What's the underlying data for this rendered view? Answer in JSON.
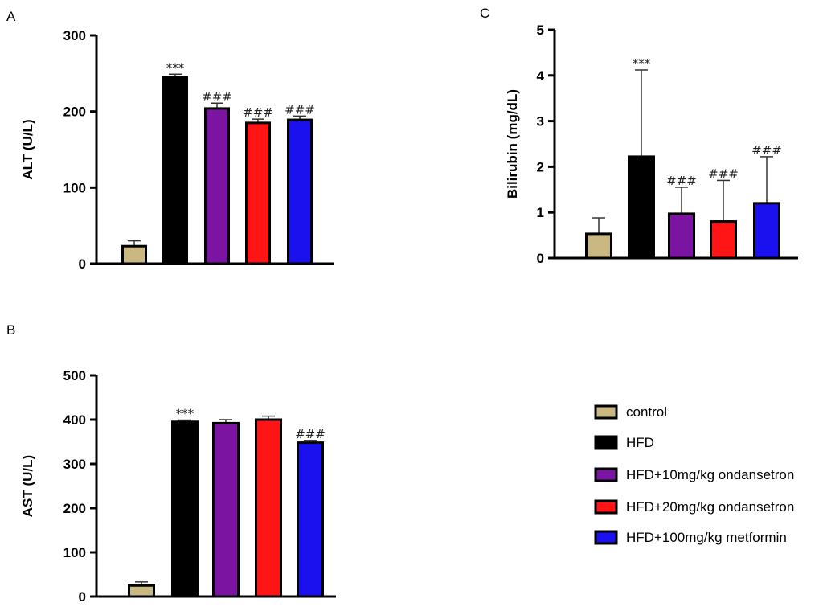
{
  "legend": [
    {
      "label": "control",
      "color": "#c9b882"
    },
    {
      "label": "HFD",
      "color": "#000000"
    },
    {
      "label": "HFD+10mg/kg ondansetron",
      "color": "#7b14a0"
    },
    {
      "label": "HFD+20mg/kg ondansetron",
      "color": "#ff1515"
    },
    {
      "label": "HFD+100mg/kg metformin",
      "color": "#1b10ee"
    }
  ],
  "chart_data": [
    {
      "panel": "A",
      "type": "bar",
      "ylabel": "ALT (U/L)",
      "ylim": [
        0,
        300
      ],
      "yticks": [
        "0",
        "100",
        "200",
        "300"
      ],
      "categories": [
        "control",
        "HFD",
        "HFD+10mg/kg ondansetron",
        "HFD+20mg/kg ondansetron",
        "HFD+100mg/kg metformin"
      ],
      "values": [
        23,
        245,
        204,
        185,
        189
      ],
      "errors": [
        7,
        4,
        7,
        5,
        5
      ],
      "annotations": [
        "",
        "***",
        "###",
        "###",
        "###"
      ]
    },
    {
      "panel": "B",
      "type": "bar",
      "ylabel": "AST (U/L)",
      "ylim": [
        0,
        500
      ],
      "yticks": [
        "0",
        "100",
        "200",
        "300",
        "400",
        "500"
      ],
      "categories": [
        "control",
        "HFD",
        "HFD+10mg/kg ondansetron",
        "HFD+20mg/kg ondansetron",
        "HFD+100mg/kg metformin"
      ],
      "values": [
        25,
        395,
        392,
        400,
        348
      ],
      "errors": [
        8,
        4,
        8,
        8,
        5
      ],
      "annotations": [
        "",
        "***",
        "",
        "",
        "###"
      ]
    },
    {
      "panel": "C",
      "type": "bar",
      "ylabel": "Bilirubin (mg/dL)",
      "ylim": [
        0,
        5
      ],
      "yticks": [
        "0",
        "1",
        "2",
        "3",
        "4",
        "5"
      ],
      "categories": [
        "control",
        "HFD",
        "HFD+10mg/kg ondansetron",
        "HFD+20mg/kg ondansetron",
        "HFD+100mg/kg metformin"
      ],
      "values": [
        0.53,
        2.22,
        0.97,
        0.8,
        1.2
      ],
      "errors": [
        0.35,
        1.9,
        0.58,
        0.9,
        1.02
      ],
      "annotations": [
        "",
        "***",
        "###",
        "###",
        "###"
      ]
    }
  ]
}
